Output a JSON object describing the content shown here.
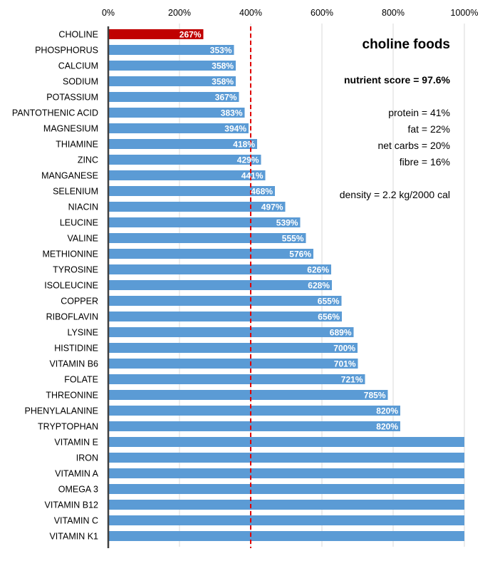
{
  "chart_data": {
    "type": "bar",
    "orientation": "horizontal",
    "title": "choline foods",
    "xlabel": "",
    "ylabel": "",
    "xlim": [
      0,
      1000
    ],
    "x_ticks": [
      "0%",
      "200%",
      "400%",
      "600%",
      "800%",
      "1000%"
    ],
    "x_tick_values": [
      0,
      200,
      400,
      600,
      800,
      1000
    ],
    "reference_line": {
      "value": 400,
      "style": "dashed",
      "color": "#e00000"
    },
    "highlight_color": "#c00000",
    "bar_color": "#5b9bd5",
    "categories": [
      "CHOLINE",
      "PHOSPHORUS",
      "CALCIUM",
      "SODIUM",
      "POTASSIUM",
      "PANTOTHENIC ACID",
      "MAGNESIUM",
      "THIAMINE",
      "ZINC",
      "MANGANESE",
      "SELENIUM",
      "NIACIN",
      "LEUCINE",
      "VALINE",
      "METHIONINE",
      "TYROSINE",
      "ISOLEUCINE",
      "COPPER",
      "RIBOFLAVIN",
      "LYSINE",
      "HISTIDINE",
      "VITAMIN B6",
      "FOLATE",
      "THREONINE",
      "PHENYLALANINE",
      "TRYPTOPHAN",
      "VITAMIN E",
      "IRON",
      "VITAMIN A",
      "OMEGA 3",
      "VITAMIN B12",
      "VITAMIN C",
      "VITAMIN K1"
    ],
    "values": [
      267,
      353,
      358,
      358,
      367,
      383,
      394,
      418,
      429,
      441,
      468,
      497,
      539,
      555,
      576,
      626,
      628,
      655,
      656,
      689,
      700,
      701,
      721,
      785,
      820,
      820,
      1000,
      1000,
      1000,
      1000,
      1000,
      1000,
      1000
    ],
    "value_labels": [
      "267%",
      "353%",
      "358%",
      "358%",
      "367%",
      "383%",
      "394%",
      "418%",
      "429%",
      "441%",
      "468%",
      "497%",
      "539%",
      "555%",
      "576%",
      "626%",
      "628%",
      "655%",
      "656%",
      "689%",
      "700%",
      "701%",
      "721%",
      "785%",
      "820%",
      "820%",
      "",
      "",
      "",
      "",
      "",
      "",
      ""
    ],
    "highlight_index": 0
  },
  "annotations": {
    "title": "choline foods",
    "nutrient_score": "nutrient score = 97.6%",
    "protein": "protein = 41%",
    "fat": "fat = 22%",
    "net_carbs": "net carbs = 20%",
    "fibre": "fibre = 16%",
    "density": "density = 2.2 kg/2000 cal"
  }
}
